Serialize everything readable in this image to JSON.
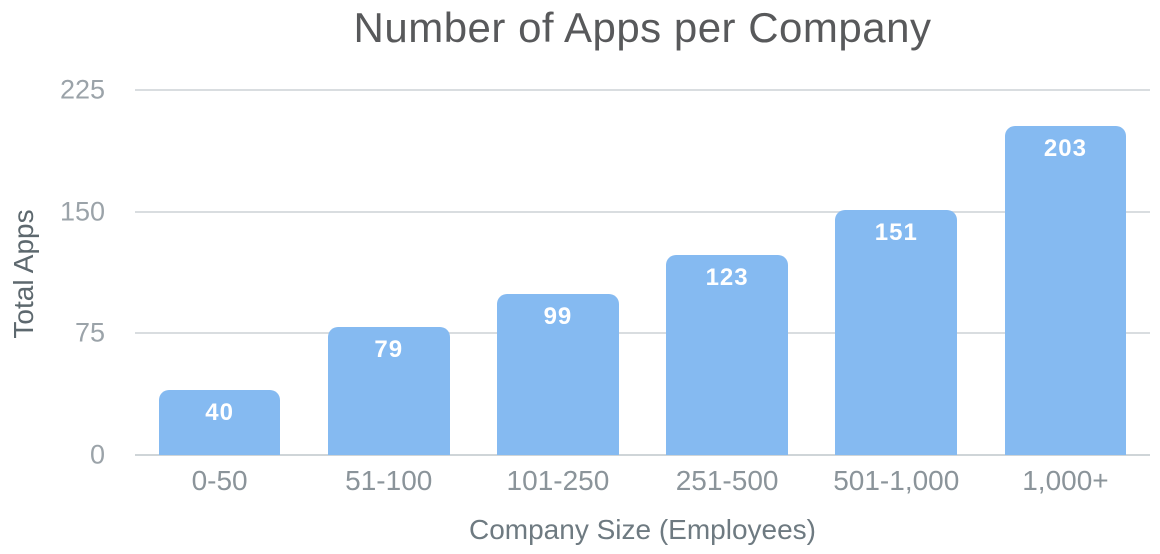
{
  "chart_data": {
    "type": "bar",
    "title": "Number of Apps per Company",
    "xlabel": "Company Size (Employees)",
    "ylabel": "Total Apps",
    "categories": [
      "0-50",
      "51-100",
      "101-250",
      "251-500",
      "501-1,000",
      "1,000+"
    ],
    "values": [
      40,
      79,
      99,
      123,
      151,
      203
    ],
    "ylim": [
      0,
      225
    ],
    "yticks": [
      0,
      75,
      150,
      225
    ],
    "grid": true,
    "legend": false,
    "colors": {
      "bar": "#85baf1",
      "value_label": "#ffffff",
      "gridline": "#d9dde0",
      "title": "#58595b",
      "axis_title": "#6e7a81",
      "y_axis_title": "#5d686e",
      "tick_label": "#9ba3a9",
      "x_tick_label": "#8b949a"
    }
  }
}
